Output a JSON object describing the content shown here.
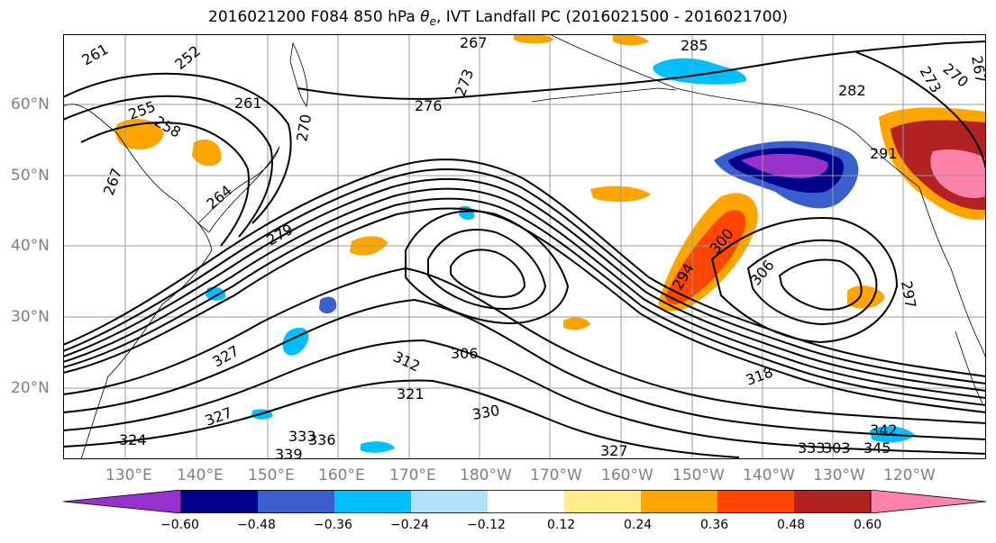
{
  "title": {
    "prefix": "2016021200 F084 850 hPa ",
    "theta": "θ",
    "sub": "e",
    "suffix": ", IVT Landfall PC (2016021500 - 2016021700)"
  },
  "lat_labels": [
    "60°N",
    "50°N",
    "40°N",
    "30°N",
    "20°N"
  ],
  "lon_labels": [
    "130°E",
    "140°E",
    "150°E",
    "160°E",
    "170°E",
    "180°W",
    "170°W",
    "160°W",
    "150°W",
    "140°W",
    "130°W",
    "120°W"
  ],
  "contour_labels": [
    "261",
    "255",
    "258",
    "252",
    "261",
    "267",
    "264",
    "270",
    "267",
    "273",
    "276",
    "279",
    "285",
    "282",
    "273",
    "270",
    "267",
    "291",
    "294",
    "297",
    "300",
    "306",
    "312",
    "306",
    "318",
    "321",
    "327",
    "327",
    "324",
    "330",
    "333",
    "336",
    "339",
    "327",
    "333",
    "345",
    "342",
    "303"
  ],
  "colorbar": {
    "colors": [
      "#9932cc",
      "#00008b",
      "#3a5fcd",
      "#00bfff",
      "#b0e2ff",
      "#ffffff",
      "#ffec8b",
      "#ffa500",
      "#ff4500",
      "#b22222",
      "#ff82ab"
    ],
    "ticks": [
      "−0.60",
      "−0.48",
      "−0.36",
      "−0.24",
      "−0.12",
      "0.12",
      "0.24",
      "0.36",
      "0.48",
      "0.60"
    ]
  }
}
